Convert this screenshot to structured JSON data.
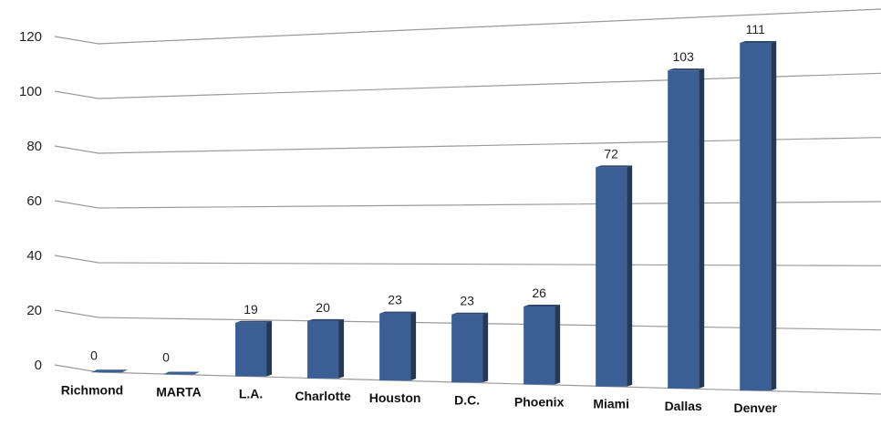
{
  "chart_data": {
    "type": "bar",
    "categories": [
      "Richmond",
      "MARTA",
      "L.A.",
      "Charlotte",
      "Houston",
      "D.C.",
      "Phoenix",
      "Miami",
      "Dallas",
      "Denver"
    ],
    "values": [
      0,
      0,
      19,
      20,
      23,
      23,
      26,
      72,
      103,
      111
    ],
    "ylim": [
      0,
      120
    ],
    "yticks": [
      0,
      20,
      40,
      60,
      80,
      100,
      120
    ],
    "grid": true,
    "bar_color": "#3b5f95",
    "highlight_category": "MARTA",
    "highlight_color": "#e87a2f"
  }
}
